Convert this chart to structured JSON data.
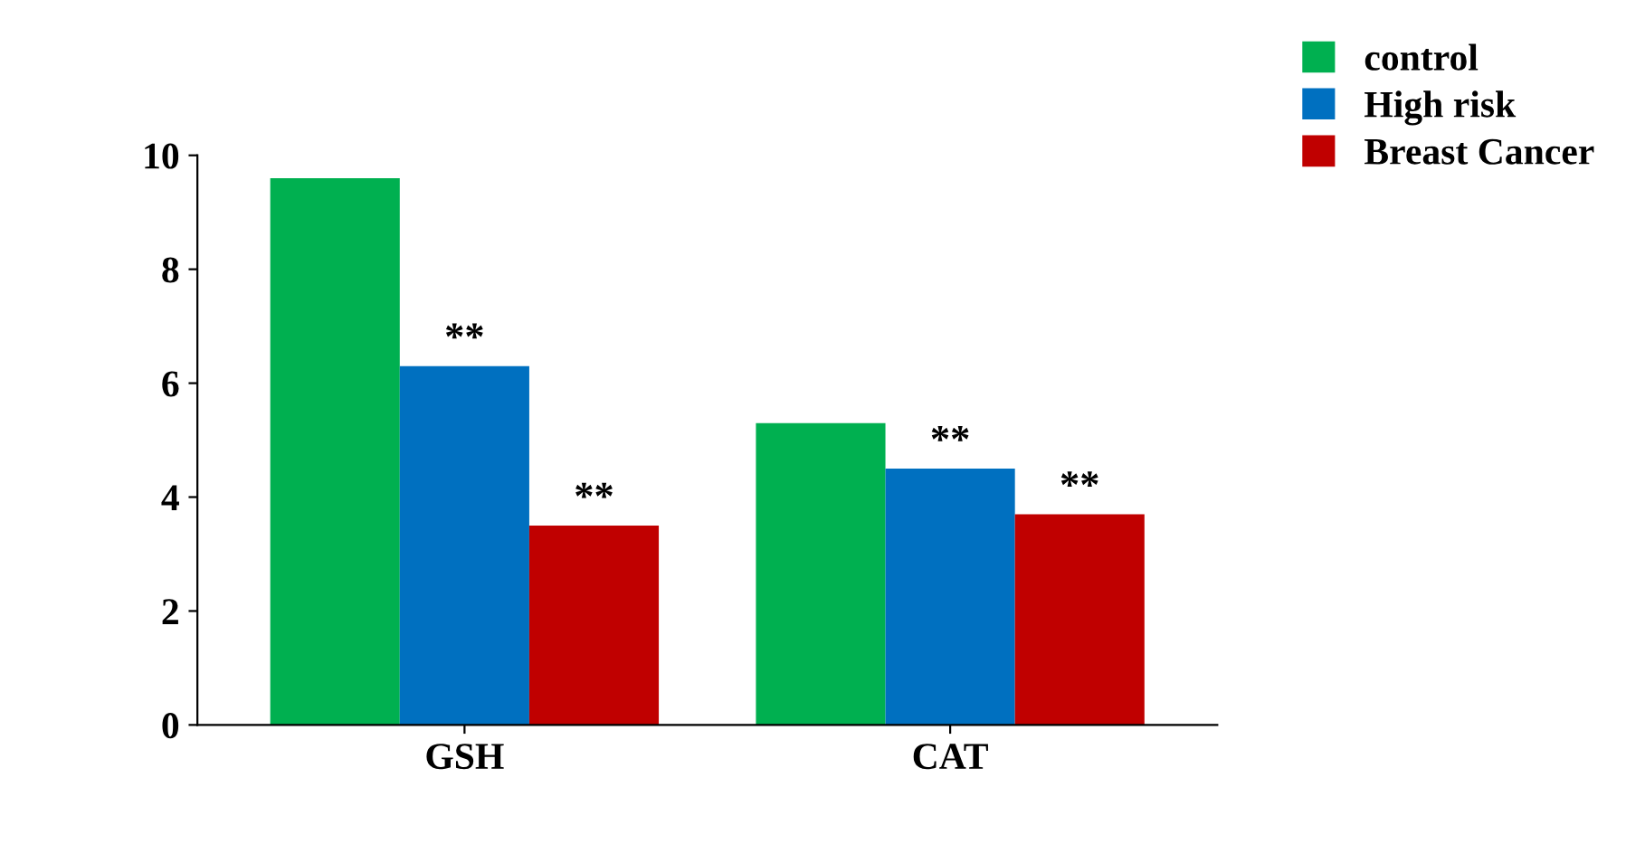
{
  "chart_data": {
    "type": "bar",
    "categories": [
      "GSH",
      "CAT"
    ],
    "series": [
      {
        "name": "control",
        "color": "#00b050",
        "values": [
          9.6,
          5.3
        ]
      },
      {
        "name": "High risk",
        "color": "#0070c0",
        "values": [
          6.3,
          4.5
        ]
      },
      {
        "name": "Breast Cancer",
        "color": "#c00000",
        "values": [
          3.5,
          3.7
        ]
      }
    ],
    "ylim": [
      0,
      10
    ],
    "yticks": [
      0,
      2,
      4,
      6,
      8,
      10
    ],
    "grid": false,
    "legend": "top right",
    "annotations": [
      "**",
      "**",
      "**",
      "**"
    ]
  }
}
